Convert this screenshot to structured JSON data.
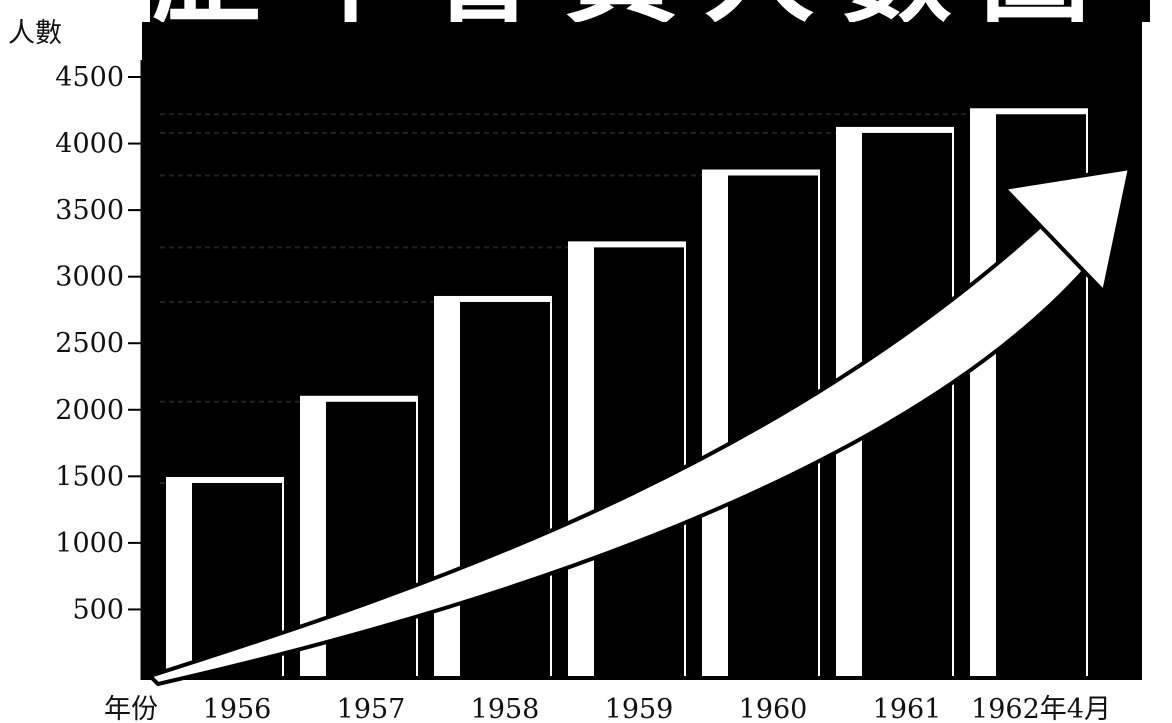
{
  "chart_data": {
    "type": "bar",
    "title": "歷年會員人數圖",
    "xlabel": "年份",
    "ylabel": "人數",
    "categories": [
      "1956",
      "1957",
      "1958",
      "1959",
      "1960",
      "1961",
      "1962年4月"
    ],
    "values": [
      1450,
      2060,
      2810,
      3220,
      3760,
      4080,
      4220
    ],
    "ylim": [
      0,
      4500
    ],
    "yticks": [
      500,
      1000,
      1500,
      2000,
      2500,
      3000,
      3500,
      4000,
      4500
    ],
    "grid": false,
    "reference_lines": "dashed",
    "annotations": [
      "trend-arrow"
    ],
    "colors": {
      "bars": "#000000",
      "panel": "#000000",
      "gaps": "#ffffff",
      "arrow_fill": "#ffffff"
    }
  }
}
